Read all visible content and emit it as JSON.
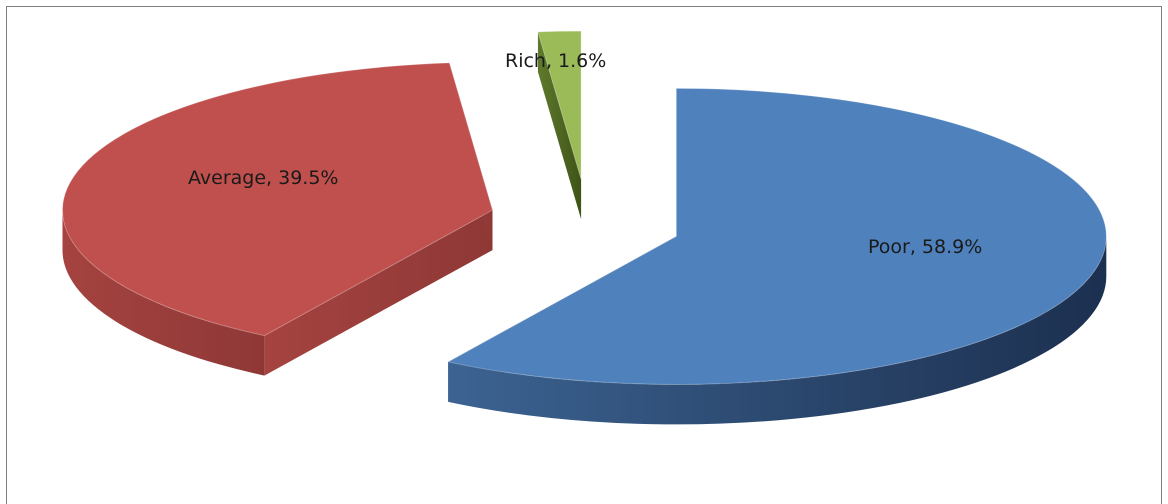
{
  "chart_data": {
    "type": "pie",
    "style": "3d-exploded",
    "title": "",
    "legend": "none",
    "slices": [
      {
        "category": "Poor",
        "value": 58.9,
        "label": "Poor, 58.9%",
        "color": "#4f81bd"
      },
      {
        "category": "Average",
        "value": 39.5,
        "label": "Average, 39.5%",
        "color": "#c0504d"
      },
      {
        "category": "Rich",
        "value": 1.6,
        "label": "Rich, 1.6%",
        "color": "#9bbb59"
      }
    ]
  }
}
